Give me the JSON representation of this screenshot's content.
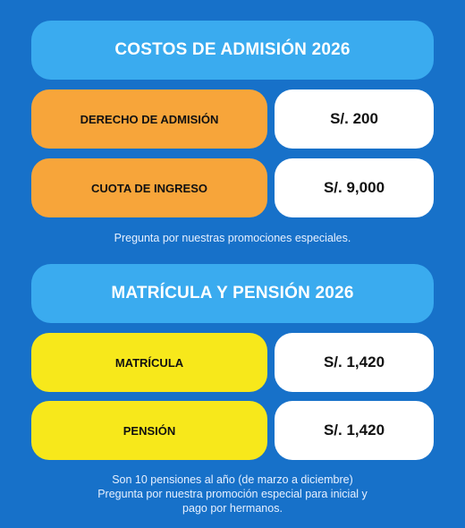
{
  "admision": {
    "title": "COSTOS DE ADMISIÓN 2026",
    "rows": [
      {
        "label": "DERECHO DE ADMISIÓN",
        "value": "S/. 200"
      },
      {
        "label": "CUOTA DE INGRESO",
        "value": "S/. 9,000"
      }
    ],
    "note": "Pregunta por nuestras promociones especiales."
  },
  "matricula": {
    "title": "MATRÍCULA Y PENSIÓN 2026",
    "rows": [
      {
        "label": "MATRÍCULA",
        "value": "S/. 1,420"
      },
      {
        "label": "PENSIÓN",
        "value": "S/. 1,420"
      }
    ],
    "note_lines": [
      "Son 10 pensiones al año (de marzo a diciembre)",
      "Pregunta por nuestra promoción especial  para inicial y",
      "pago por hermanos."
    ]
  },
  "colors": {
    "background": "#1771c9",
    "header": "#3aabef",
    "admision_label": "#f7a53a",
    "matricula_label": "#f7e81b",
    "value_box": "#ffffff"
  }
}
